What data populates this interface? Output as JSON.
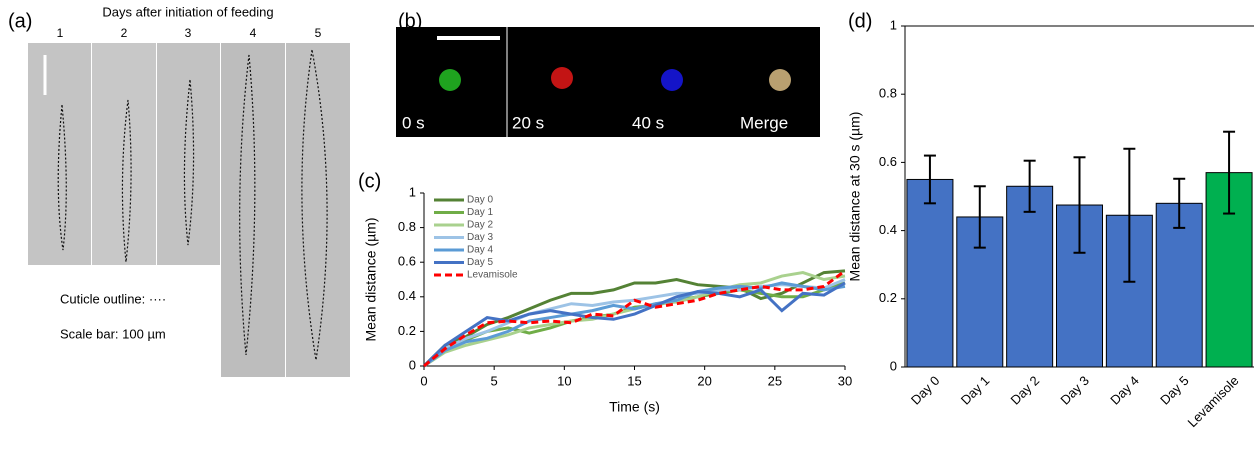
{
  "panel_a": {
    "label": "(a)",
    "title": "Days after initiation of feeding",
    "days": [
      "1",
      "2",
      "3",
      "4",
      "5"
    ],
    "notes": [
      "Cuticle outline: ····",
      "Scale bar: 100 µm"
    ]
  },
  "panel_b": {
    "label": "(b)",
    "frames": [
      "0 s",
      "20 s",
      "40 s",
      "Merge"
    ]
  },
  "chart_data": [
    {
      "type": "line",
      "panel_label": "(c)",
      "x_label": "Time (s)",
      "y_label": "Mean distance (µm)",
      "x": [
        0,
        1.5,
        3,
        4.5,
        6,
        7.5,
        9,
        10.5,
        12,
        13.5,
        15,
        16.5,
        18,
        19.5,
        21,
        22.5,
        24,
        25.5,
        27,
        28.5,
        30
      ],
      "xlim": [
        0,
        30
      ],
      "xticks": [
        0,
        5,
        10,
        15,
        20,
        25,
        30
      ],
      "ylim": [
        0,
        1
      ],
      "yticks": [
        0,
        0.2,
        0.4,
        0.6,
        0.8,
        1
      ],
      "legend": "upper-left",
      "series": [
        {
          "name": "Day 0",
          "color": "#548235",
          "values": [
            0,
            0.12,
            0.17,
            0.24,
            0.28,
            0.33,
            0.38,
            0.42,
            0.42,
            0.44,
            0.48,
            0.48,
            0.5,
            0.47,
            0.46,
            0.45,
            0.39,
            0.42,
            0.48,
            0.54,
            0.55
          ]
        },
        {
          "name": "Day 1",
          "color": "#70ad47",
          "values": [
            0,
            0.1,
            0.15,
            0.2,
            0.22,
            0.19,
            0.22,
            0.26,
            0.28,
            0.3,
            0.34,
            0.35,
            0.38,
            0.4,
            0.42,
            0.44,
            0.42,
            0.4,
            0.4,
            0.44,
            0.48
          ]
        },
        {
          "name": "Day 2",
          "color": "#a9d18e",
          "values": [
            0,
            0.08,
            0.12,
            0.15,
            0.18,
            0.22,
            0.24,
            0.26,
            0.27,
            0.3,
            0.33,
            0.36,
            0.37,
            0.4,
            0.44,
            0.47,
            0.48,
            0.52,
            0.54,
            0.5,
            0.52
          ]
        },
        {
          "name": "Day 3",
          "color": "#9dc3e6",
          "values": [
            0,
            0.1,
            0.16,
            0.2,
            0.25,
            0.3,
            0.33,
            0.36,
            0.35,
            0.37,
            0.38,
            0.4,
            0.42,
            0.42,
            0.44,
            0.44,
            0.46,
            0.47,
            0.46,
            0.45,
            0.5
          ]
        },
        {
          "name": "Day 4",
          "color": "#5b9bd5",
          "values": [
            0,
            0.09,
            0.14,
            0.16,
            0.2,
            0.26,
            0.28,
            0.3,
            0.32,
            0.35,
            0.33,
            0.36,
            0.38,
            0.43,
            0.45,
            0.46,
            0.45,
            0.48,
            0.46,
            0.44,
            0.46
          ]
        },
        {
          "name": "Day 5",
          "color": "#4472c4",
          "values": [
            0,
            0.12,
            0.2,
            0.28,
            0.26,
            0.3,
            0.32,
            0.3,
            0.28,
            0.27,
            0.3,
            0.35,
            0.4,
            0.43,
            0.42,
            0.4,
            0.44,
            0.32,
            0.42,
            0.41,
            0.48
          ]
        },
        {
          "name": "Levamisole",
          "color": "#ff0000",
          "dashed": true,
          "values": [
            0,
            0.1,
            0.18,
            0.25,
            0.26,
            0.25,
            0.26,
            0.25,
            0.3,
            0.29,
            0.38,
            0.34,
            0.36,
            0.38,
            0.42,
            0.44,
            0.46,
            0.44,
            0.44,
            0.46,
            0.55
          ]
        }
      ]
    },
    {
      "type": "bar",
      "panel_label": "(d)",
      "y_label": "Mean distance at 30 s (µm)",
      "categories": [
        "Day 0",
        "Day 1",
        "Day 2",
        "Day 3",
        "Day 4",
        "Day 5",
        "Levamisole"
      ],
      "values": [
        0.55,
        0.44,
        0.53,
        0.475,
        0.445,
        0.48,
        0.57
      ],
      "errors": [
        0.07,
        0.09,
        0.075,
        0.14,
        0.195,
        0.072,
        0.12
      ],
      "colors": [
        "#4472c4",
        "#4472c4",
        "#4472c4",
        "#4472c4",
        "#4472c4",
        "#4472c4",
        "#00b050"
      ],
      "ylim": [
        0,
        1
      ],
      "yticks": [
        0,
        0.2,
        0.4,
        0.6,
        0.8,
        1
      ]
    }
  ]
}
